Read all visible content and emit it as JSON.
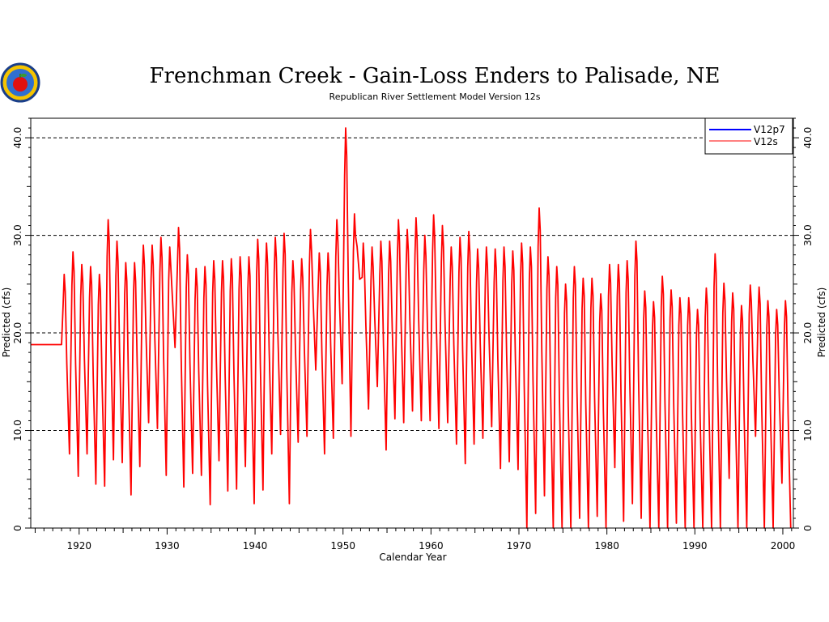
{
  "chart_data": {
    "type": "line",
    "title": "Frenchman Creek - Gain-Loss Enders to Palisade, NE",
    "subtitle": "Republican River Settlement Model Version 12s",
    "xlabel": "Calendar Year",
    "ylabel": "Predicted (cfs)",
    "xlim": [
      1914.5,
      2001.2
    ],
    "ylim": [
      0,
      42
    ],
    "x_ticks": [
      1920,
      1930,
      1940,
      1950,
      1960,
      1970,
      1980,
      1990,
      2000
    ],
    "x_tick_labels": [
      "1920",
      "1930",
      "1940",
      "1950",
      "1960",
      "1970",
      "1980",
      "1990",
      "2000"
    ],
    "y_ticks": [
      0,
      10,
      20,
      30,
      40
    ],
    "y_tick_labels": [
      "0",
      "10.0",
      "20.0",
      "30.0",
      "40.0"
    ],
    "grid": "horizontal dashed at major y ticks",
    "legend_position": "top-right",
    "series": [
      {
        "name": "V12p7",
        "color": "#0000ff",
        "x": [],
        "y": []
      },
      {
        "name": "V12s",
        "color": "#ff0000",
        "initial_constant": {
          "x": [
            1914.5,
            1918.0
          ],
          "y": [
            18.8,
            18.8
          ]
        },
        "annual_peak_years": [
          1918.3,
          1919.3,
          1920.3,
          1921.3,
          1922.3,
          1923.3,
          1924.3,
          1925.3,
          1926.3,
          1927.3,
          1928.3,
          1929.3,
          1930.3,
          1931.3,
          1932.3,
          1933.3,
          1934.3,
          1935.3,
          1936.3,
          1937.3,
          1938.3,
          1939.3,
          1940.3,
          1941.3,
          1942.3,
          1943.3,
          1944.3,
          1945.3,
          1946.3,
          1947.3,
          1948.3,
          1949.3,
          1950.3,
          1951.3,
          1952.3,
          1953.3,
          1954.3,
          1955.3,
          1956.3,
          1957.3,
          1958.3,
          1959.3,
          1960.3,
          1961.3,
          1962.3,
          1963.3,
          1964.3,
          1965.3,
          1966.3,
          1967.3,
          1968.3,
          1969.3,
          1970.3,
          1971.3,
          1972.3,
          1973.3,
          1974.3,
          1975.3,
          1976.3,
          1977.3,
          1978.3,
          1979.3,
          1980.3,
          1981.3,
          1982.3,
          1983.3,
          1984.3,
          1985.3,
          1986.3,
          1987.3,
          1988.3,
          1989.3,
          1990.3,
          1991.3,
          1992.3,
          1993.3,
          1994.3,
          1995.3,
          1996.3,
          1997.3,
          1998.3,
          1999.3,
          2000.3
        ],
        "annual_peaks": [
          26.0,
          28.3,
          27.0,
          26.8,
          26.0,
          31.6,
          29.4,
          27.2,
          27.2,
          29.0,
          29.0,
          29.8,
          28.8,
          30.8,
          28.0,
          26.6,
          26.8,
          27.4,
          27.4,
          27.6,
          27.8,
          27.8,
          29.6,
          29.2,
          29.8,
          30.2,
          27.4,
          27.6,
          30.6,
          28.2,
          28.2,
          31.6,
          41.0,
          32.2,
          29.2,
          28.8,
          29.4,
          29.4,
          31.6,
          30.6,
          31.8,
          30.0,
          32.1,
          31.0,
          28.8,
          29.8,
          30.4,
          28.6,
          28.8,
          28.6,
          28.8,
          28.4,
          29.2,
          28.8,
          32.8,
          27.8,
          26.8,
          25.0,
          26.8,
          25.6,
          25.6,
          24.0,
          27.0,
          27.0,
          27.4,
          29.4,
          24.3,
          23.2,
          25.8,
          24.4,
          23.6,
          23.6,
          22.4,
          24.6,
          28.1,
          25.1,
          24.1,
          22.8,
          24.9,
          24.7,
          23.3,
          22.4,
          23.3
        ],
        "annual_trough_years": [
          1918.9,
          1919.9,
          1920.9,
          1921.9,
          1922.9,
          1923.9,
          1924.9,
          1925.9,
          1926.9,
          1927.9,
          1928.9,
          1929.9,
          1930.9,
          1931.9,
          1932.9,
          1933.9,
          1934.9,
          1935.9,
          1936.9,
          1937.9,
          1938.9,
          1939.9,
          1940.9,
          1941.9,
          1942.9,
          1943.9,
          1944.9,
          1945.9,
          1946.9,
          1947.9,
          1948.9,
          1949.9,
          1950.9,
          1951.9,
          1952.9,
          1953.9,
          1954.9,
          1955.9,
          1956.9,
          1957.9,
          1958.9,
          1959.9,
          1960.9,
          1961.9,
          1962.9,
          1963.9,
          1964.9,
          1965.9,
          1966.9,
          1967.9,
          1968.9,
          1969.9,
          1970.9,
          1971.9,
          1972.9,
          1973.9,
          1974.9,
          1975.9,
          1976.9,
          1977.9,
          1978.9,
          1979.9,
          1980.9,
          1981.9,
          1982.9,
          1983.9,
          1984.9,
          1985.9,
          1986.9,
          1987.9,
          1988.9,
          1989.9,
          1990.9,
          1991.9,
          1992.9,
          1993.9,
          1994.9,
          1995.9,
          1996.9,
          1997.9,
          1998.9,
          1999.9,
          2000.9
        ],
        "annual_troughs": [
          7.6,
          5.3,
          7.6,
          4.5,
          4.3,
          7.0,
          6.7,
          3.4,
          6.3,
          10.8,
          10.2,
          5.4,
          18.5,
          4.2,
          5.6,
          5.4,
          2.4,
          6.9,
          3.8,
          4.0,
          6.3,
          2.5,
          3.9,
          7.6,
          9.6,
          2.5,
          8.8,
          9.4,
          16.2,
          7.6,
          9.2,
          14.8,
          9.4,
          25.5,
          12.2,
          14.5,
          8.0,
          11.2,
          10.8,
          12.0,
          11.0,
          11.0,
          10.2,
          10.8,
          8.6,
          6.6,
          8.6,
          9.2,
          10.4,
          6.1,
          6.8,
          6.0,
          0.0,
          1.5,
          3.3,
          0.0,
          0.0,
          0.0,
          1.0,
          0.0,
          1.2,
          0.0,
          6.2,
          0.7,
          2.5,
          1.0,
          0.0,
          0.0,
          0.0,
          0.5,
          0.0,
          0.0,
          0.0,
          0.0,
          0.0,
          5.1,
          0.0,
          0.0,
          9.4,
          0.0,
          0.0,
          4.6,
          0.0
        ]
      }
    ]
  }
}
